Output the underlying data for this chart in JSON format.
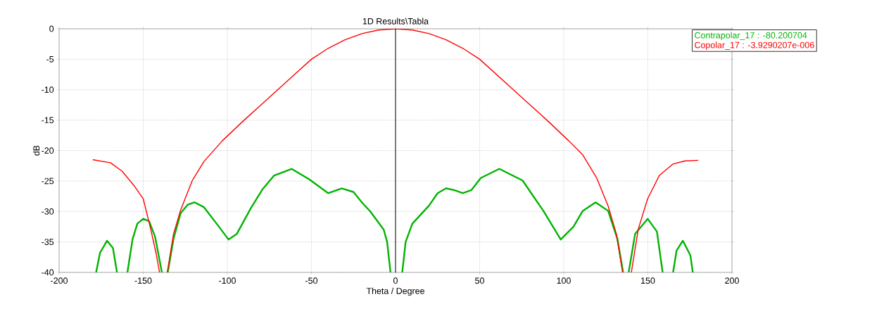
{
  "chart_data": {
    "type": "line",
    "title": "1D Results\\Tabla",
    "xlabel": "Theta / Degree",
    "ylabel": "dB",
    "xlim": [
      -200,
      200
    ],
    "xticks": [
      -200,
      -150,
      -100,
      -50,
      0,
      50,
      100,
      150,
      200
    ],
    "ylim": [
      -40,
      0
    ],
    "yticks": [
      -40,
      -35,
      -30,
      -25,
      -20,
      -15,
      -10,
      -5,
      0
    ],
    "grid": true,
    "legend": "top right",
    "marker": "none",
    "line_style": "solid",
    "ref_lines": [
      {
        "axis": "x",
        "value": 0,
        "color": "#000000"
      }
    ],
    "series": [
      {
        "name": "Contrapolar_17 : -80.200704",
        "color": "#00b400",
        "x": [
          -178,
          -175.7,
          -171.5,
          -168,
          -165.6,
          -162,
          -159.4,
          -156.3,
          -153.5,
          -150,
          -146.5,
          -143,
          -138.9,
          -137,
          -135.4,
          -132,
          -127.8,
          -123.6,
          -119.4,
          -113.9,
          -106.9,
          -99.3,
          -94.4,
          -86.1,
          -79.2,
          -72.2,
          -61.8,
          -51.4,
          -45,
          -40,
          -32,
          -25,
          -20,
          -15,
          -11,
          -7,
          -5,
          -3,
          0,
          4,
          6,
          10,
          15,
          20,
          25,
          30,
          35,
          40,
          45,
          50.7,
          61.7,
          75.5,
          87.9,
          98.2,
          105.8,
          111.3,
          118.9,
          126.4,
          131.9,
          135.3,
          137,
          138.6,
          142.4,
          149.9,
          155.4,
          158.8,
          162,
          165,
          167.1,
          170.8,
          175.3,
          176.7
        ],
        "values": [
          -40,
          -36.8,
          -34.8,
          -36,
          -40,
          null,
          -40,
          -34.5,
          -32,
          -31.2,
          -31.6,
          -34.1,
          -40,
          null,
          -40,
          -34.5,
          -30.3,
          -28.9,
          -28.5,
          -29.3,
          -31.8,
          -34.6,
          -33.7,
          -29.5,
          -26.4,
          -24.1,
          -23,
          -24.7,
          -26,
          -27,
          -26.2,
          -26.8,
          -28.5,
          -30,
          -31.5,
          -33,
          -35,
          -40,
          null,
          -40,
          -35,
          -32,
          -30.5,
          -29,
          -27,
          -26.2,
          -26.5,
          -27,
          -26.5,
          -24.5,
          -23,
          -24.9,
          -29.9,
          -34.6,
          -32.5,
          -29.9,
          -28.5,
          -29.9,
          -34.5,
          -40,
          null,
          -40,
          -33.7,
          -31.2,
          -33.3,
          -40,
          null,
          -40,
          -36.4,
          -34.8,
          -37.2,
          -40
        ]
      },
      {
        "name": "Copolar_17 : -3.9290207e-006",
        "color": "#ff0000",
        "x": [
          -180,
          -169.4,
          -162.5,
          -155.6,
          -150,
          -145.8,
          -142.4,
          -140.3,
          -138,
          -135.7,
          -132,
          -127.8,
          -120.8,
          -113.9,
          -103,
          -90,
          -80,
          -70,
          -60,
          -50,
          -40,
          -30,
          -20,
          -10,
          0,
          10,
          20,
          30,
          40,
          50,
          60,
          70,
          80,
          90,
          103,
          111.3,
          119.6,
          126.4,
          131.3,
          135,
          138,
          140.2,
          144.3,
          149.9,
          156.8,
          165,
          171.9,
          180
        ],
        "values": [
          -21.5,
          -22,
          -23.4,
          -25.7,
          -27.9,
          -32.6,
          -36.8,
          -40,
          null,
          -40,
          -33.7,
          -29.8,
          -24.9,
          -21.8,
          -18.4,
          -15,
          -12.5,
          -10,
          -7.5,
          -5,
          -3.2,
          -1.8,
          -0.8,
          -0.2,
          0,
          -0.2,
          -0.8,
          -1.8,
          -3.2,
          -5,
          -7.5,
          -10,
          -12.5,
          -15,
          -18.4,
          -20.7,
          -24.5,
          -29.1,
          -33.7,
          -40,
          null,
          -40,
          -32.9,
          -27.9,
          -24.1,
          -22.2,
          -21.7,
          -21.6
        ]
      }
    ]
  }
}
